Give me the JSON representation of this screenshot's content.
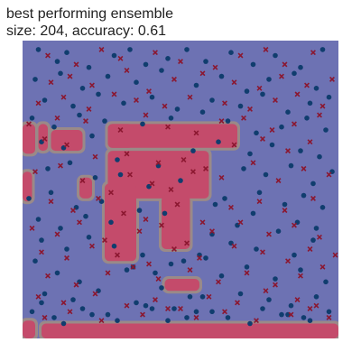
{
  "chart_data": {
    "type": "scatter",
    "title": "best performing ensemble\nsize: 204, accuracy: 0.61",
    "xlabel": "",
    "ylabel": "",
    "xlim": [
      0,
      1
    ],
    "ylim": [
      0,
      1
    ],
    "grid": false,
    "legend": "none",
    "colors": {
      "background_region": "#6d72b3",
      "positive_region": "#c44b6b",
      "boundary": "#9a8a88",
      "class_circle": "#103d6e",
      "class_cross": "#8b1730"
    },
    "decision_regions": {
      "class": "cross",
      "rects": [
        {
          "x0": 0.0,
          "x1": 0.04,
          "y0": 0.62,
          "y1": 0.72
        },
        {
          "x0": 0.05,
          "x1": 0.08,
          "y0": 0.63,
          "y1": 0.72
        },
        {
          "x0": 0.09,
          "x1": 0.19,
          "y0": 0.63,
          "y1": 0.7
        },
        {
          "x0": 0.27,
          "x1": 0.68,
          "y0": 0.64,
          "y1": 0.72
        },
        {
          "x0": 0.27,
          "x1": 0.35,
          "y0": 0.64,
          "y1": 0.72
        },
        {
          "x0": 0.27,
          "x1": 0.59,
          "y0": 0.47,
          "y1": 0.63
        },
        {
          "x0": 0.26,
          "x1": 0.36,
          "y0": 0.26,
          "y1": 0.52
        },
        {
          "x0": 0.44,
          "x1": 0.53,
          "y0": 0.3,
          "y1": 0.48
        },
        {
          "x0": 0.52,
          "x1": 0.58,
          "y0": 0.5,
          "y1": 0.61
        },
        {
          "x0": 0.0,
          "x1": 0.03,
          "y0": 0.46,
          "y1": 0.56
        },
        {
          "x0": 0.18,
          "x1": 0.22,
          "y0": 0.47,
          "y1": 0.54
        },
        {
          "x0": 0.45,
          "x1": 0.56,
          "y0": 0.16,
          "y1": 0.2
        },
        {
          "x0": 0.0,
          "x1": 0.04,
          "y0": 0.0,
          "y1": 0.06
        },
        {
          "x0": 0.06,
          "x1": 1.0,
          "y0": 0.0,
          "y1": 0.05
        }
      ]
    },
    "series": [
      {
        "marker": "circle",
        "x": [
          0.05,
          0.11,
          0.14,
          0.21,
          0.29,
          0.34,
          0.39,
          0.46,
          0.52,
          0.58,
          0.66,
          0.73,
          0.8,
          0.88,
          0.95,
          0.04,
          0.12,
          0.19,
          0.27,
          0.36,
          0.44,
          0.55,
          0.63,
          0.71,
          0.78,
          0.86,
          0.93,
          0.07,
          0.16,
          0.24,
          0.32,
          0.41,
          0.49,
          0.6,
          0.69,
          0.76,
          0.84,
          0.91,
          0.97,
          0.03,
          0.1,
          0.18,
          0.26,
          0.38,
          0.47,
          0.57,
          0.65,
          0.74,
          0.82,
          0.9,
          0.96,
          0.06,
          0.13,
          0.22,
          0.3,
          0.43,
          0.54,
          0.62,
          0.72,
          0.79,
          0.88,
          0.94,
          0.08,
          0.15,
          0.23,
          0.31,
          0.4,
          0.5,
          0.61,
          0.7,
          0.77,
          0.85,
          0.92,
          0.98,
          0.02,
          0.09,
          0.17,
          0.25,
          0.37,
          0.45,
          0.56,
          0.64,
          0.75,
          0.83,
          0.89,
          0.95,
          0.05,
          0.12,
          0.2,
          0.28,
          0.35,
          0.42,
          0.51,
          0.6,
          0.68,
          0.73,
          0.81,
          0.87,
          0.93,
          0.06,
          0.14,
          0.21,
          0.29,
          0.38,
          0.47,
          0.58,
          0.66,
          0.74,
          0.86,
          0.92,
          0.04,
          0.11,
          0.18,
          0.33,
          0.44,
          0.53,
          0.63,
          0.71,
          0.8,
          0.88,
          0.96,
          0.07,
          0.16,
          0.24,
          0.36,
          0.48,
          0.57,
          0.69,
          0.78,
          0.85,
          0.93,
          0.03,
          0.1,
          0.19,
          0.27,
          0.39,
          0.46,
          0.55,
          0.65,
          0.76,
          0.84,
          0.91,
          0.97,
          0.06,
          0.13,
          0.22,
          0.3,
          0.41,
          0.52,
          0.6,
          0.72,
          0.82,
          0.89
        ],
        "y": [
          0.97,
          0.93,
          0.96,
          0.91,
          0.95,
          0.97,
          0.92,
          0.94,
          0.97,
          0.93,
          0.96,
          0.92,
          0.95,
          0.91,
          0.97,
          0.87,
          0.89,
          0.84,
          0.88,
          0.86,
          0.9,
          0.85,
          0.88,
          0.83,
          0.87,
          0.89,
          0.84,
          0.8,
          0.78,
          0.82,
          0.79,
          0.81,
          0.77,
          0.8,
          0.78,
          0.82,
          0.76,
          0.79,
          0.81,
          0.74,
          0.71,
          0.75,
          0.73,
          0.72,
          0.74,
          0.76,
          0.73,
          0.69,
          0.71,
          0.74,
          0.7,
          0.66,
          0.64,
          0.68,
          0.6,
          0.58,
          0.63,
          0.66,
          0.62,
          0.65,
          0.63,
          0.61,
          0.57,
          0.59,
          0.54,
          0.55,
          0.51,
          0.53,
          0.45,
          0.57,
          0.55,
          0.58,
          0.52,
          0.56,
          0.47,
          0.49,
          0.44,
          0.46,
          0.43,
          0.42,
          0.28,
          0.47,
          0.49,
          0.45,
          0.48,
          0.44,
          0.4,
          0.37,
          0.41,
          0.39,
          0.24,
          0.22,
          0.26,
          0.35,
          0.38,
          0.42,
          0.36,
          0.39,
          0.37,
          0.33,
          0.3,
          0.34,
          0.31,
          0.28,
          0.25,
          0.27,
          0.32,
          0.3,
          0.28,
          0.33,
          0.26,
          0.22,
          0.19,
          0.23,
          0.17,
          0.14,
          0.21,
          0.24,
          0.2,
          0.23,
          0.19,
          0.15,
          0.13,
          0.16,
          0.12,
          0.1,
          0.14,
          0.15,
          0.13,
          0.11,
          0.14,
          0.09,
          0.07,
          0.1,
          0.08,
          0.11,
          0.06,
          0.09,
          0.07,
          0.1,
          0.08,
          0.06,
          0.09,
          0.12,
          0.05,
          0.08,
          0.06,
          0.1,
          0.07,
          0.09,
          0.05,
          0.08,
          0.07
        ]
      },
      {
        "marker": "cross",
        "x": [
          0.08,
          0.17,
          0.25,
          0.31,
          0.42,
          0.5,
          0.61,
          0.69,
          0.77,
          0.83,
          0.92,
          0.09,
          0.15,
          0.22,
          0.33,
          0.4,
          0.48,
          0.57,
          0.67,
          0.75,
          0.82,
          0.9,
          0.98,
          0.05,
          0.13,
          0.21,
          0.29,
          0.36,
          0.45,
          0.53,
          0.64,
          0.72,
          0.8,
          0.87,
          0.95,
          0.02,
          0.11,
          0.2,
          0.31,
          0.39,
          0.46,
          0.55,
          0.63,
          0.7,
          0.79,
          0.86,
          0.94,
          0.07,
          0.14,
          0.23,
          0.33,
          0.43,
          0.51,
          0.58,
          0.67,
          0.76,
          0.84,
          0.91,
          0.04,
          0.12,
          0.19,
          0.28,
          0.34,
          0.41,
          0.47,
          0.54,
          0.63,
          0.73,
          0.81,
          0.89,
          0.97,
          0.09,
          0.16,
          0.24,
          0.32,
          0.39,
          0.49,
          0.57,
          0.66,
          0.75,
          0.83,
          0.92,
          0.03,
          0.11,
          0.18,
          0.26,
          0.37,
          0.44,
          0.52,
          0.6,
          0.69,
          0.78,
          0.86,
          0.94,
          0.06,
          0.14,
          0.22,
          0.3,
          0.4,
          0.48,
          0.56,
          0.67,
          0.76,
          0.84,
          0.91,
          0.99,
          0.08,
          0.17,
          0.27,
          0.35,
          0.43,
          0.53,
          0.62,
          0.71,
          0.8,
          0.88,
          0.95,
          0.05,
          0.13,
          0.23,
          0.33,
          0.42,
          0.5,
          0.59,
          0.68,
          0.77,
          0.87,
          0.93,
          0.07,
          0.15,
          0.25,
          0.38,
          0.46,
          0.55,
          0.64,
          0.74,
          0.85,
          0.91,
          0.97
        ],
        "y": [
          0.95,
          0.92,
          0.97,
          0.94,
          0.96,
          0.93,
          0.91,
          0.95,
          0.97,
          0.92,
          0.96,
          0.86,
          0.88,
          0.85,
          0.9,
          0.83,
          0.87,
          0.89,
          0.86,
          0.84,
          0.88,
          0.85,
          0.87,
          0.79,
          0.81,
          0.77,
          0.82,
          0.8,
          0.78,
          0.81,
          0.79,
          0.77,
          0.8,
          0.82,
          0.78,
          0.72,
          0.74,
          0.73,
          0.7,
          0.75,
          0.71,
          0.69,
          0.73,
          0.74,
          0.7,
          0.72,
          0.75,
          0.67,
          0.65,
          0.61,
          0.62,
          0.59,
          0.6,
          0.57,
          0.65,
          0.67,
          0.63,
          0.66,
          0.56,
          0.58,
          0.53,
          0.49,
          0.55,
          0.52,
          0.5,
          0.56,
          0.54,
          0.59,
          0.53,
          0.57,
          0.55,
          0.46,
          0.43,
          0.47,
          0.42,
          0.4,
          0.45,
          0.39,
          0.44,
          0.46,
          0.43,
          0.47,
          0.37,
          0.35,
          0.39,
          0.33,
          0.36,
          0.38,
          0.32,
          0.36,
          0.39,
          0.35,
          0.38,
          0.34,
          0.29,
          0.27,
          0.31,
          0.28,
          0.25,
          0.3,
          0.27,
          0.31,
          0.29,
          0.26,
          0.3,
          0.28,
          0.21,
          0.18,
          0.22,
          0.24,
          0.2,
          0.23,
          0.19,
          0.22,
          0.18,
          0.21,
          0.24,
          0.14,
          0.12,
          0.15,
          0.11,
          0.13,
          0.1,
          0.14,
          0.12,
          0.16,
          0.13,
          0.11,
          0.07,
          0.09,
          0.06,
          0.08,
          0.1,
          0.07,
          0.09,
          0.06,
          0.08,
          0.1,
          0.07
        ]
      }
    ]
  }
}
